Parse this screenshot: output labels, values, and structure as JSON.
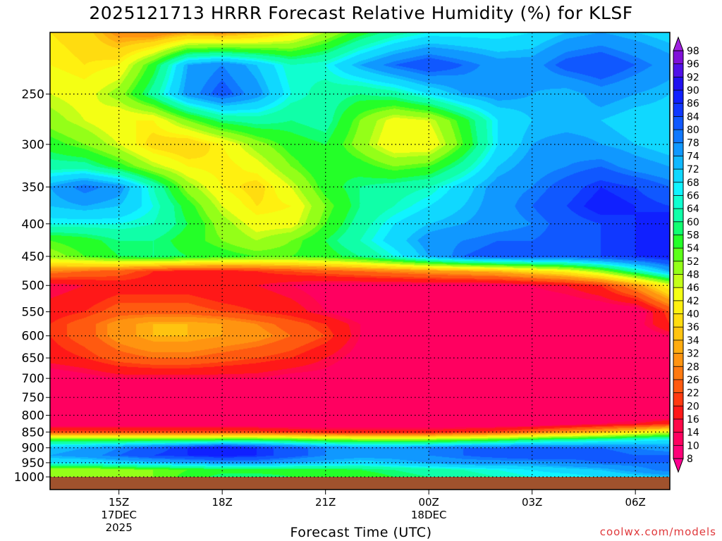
{
  "chart_data": {
    "type": "heatmap",
    "title": "2025121713 HRRR Forecast Relative Humidity (%) for KLSF",
    "xlabel": "Forecast Time (UTC)",
    "ylabel": "",
    "y_scale": "log",
    "y_reversed": true,
    "ylim": [
      1000,
      200
    ],
    "y_ticks": [
      250,
      300,
      350,
      400,
      450,
      500,
      550,
      600,
      650,
      700,
      750,
      800,
      850,
      900,
      950,
      1000
    ],
    "xlim_hours": [
      13,
      31
    ],
    "x_ticks": [
      {
        "hour": 15,
        "label": "15Z",
        "sub1": "17DEC",
        "sub2": "2025"
      },
      {
        "hour": 18,
        "label": "18Z",
        "sub1": "",
        "sub2": ""
      },
      {
        "hour": 21,
        "label": "21Z",
        "sub1": "",
        "sub2": ""
      },
      {
        "hour": 24,
        "label": "00Z",
        "sub1": "18DEC",
        "sub2": ""
      },
      {
        "hour": 27,
        "label": "03Z",
        "sub1": "",
        "sub2": ""
      },
      {
        "hour": 30,
        "label": "06Z",
        "sub1": "",
        "sub2": ""
      }
    ],
    "grid": true,
    "colorbar": {
      "levels": [
        8,
        10,
        14,
        16,
        20,
        22,
        26,
        28,
        32,
        34,
        36,
        40,
        42,
        46,
        48,
        52,
        54,
        58,
        60,
        64,
        66,
        68,
        72,
        74,
        78,
        80,
        84,
        86,
        90,
        92,
        96,
        98
      ],
      "colors": [
        "#ff0090",
        "#ff0078",
        "#ff0060",
        "#ff0848",
        "#ff1818",
        "#ff3a10",
        "#ff5a10",
        "#ff7a10",
        "#ff9410",
        "#ffac10",
        "#ffc410",
        "#ffdc10",
        "#fff010",
        "#f4ff14",
        "#c4ff18",
        "#94ff18",
        "#5cff18",
        "#24ff28",
        "#10ff70",
        "#10ffa8",
        "#10ffd0",
        "#10f4ff",
        "#10d8ff",
        "#10b8ff",
        "#1098ff",
        "#1078ff",
        "#1058ff",
        "#1038ff",
        "#1020ff",
        "#2010f0",
        "#5010e8",
        "#8010d8",
        "#a020e0"
      ]
    },
    "x": [
      13,
      14,
      15,
      16,
      17,
      18,
      19,
      20,
      21,
      22,
      23,
      24,
      25,
      26,
      27,
      28,
      29,
      30,
      31
    ],
    "y": [
      1000,
      975,
      950,
      925,
      900,
      875,
      850,
      825,
      800,
      750,
      700,
      650,
      600,
      575,
      550,
      500,
      475,
      450,
      425,
      400,
      375,
      350,
      325,
      300,
      275,
      250,
      225,
      200
    ],
    "z": [
      [
        50,
        50,
        50,
        52,
        55,
        60,
        60,
        58,
        55,
        55,
        58,
        60,
        62,
        64,
        66,
        66,
        68,
        70,
        72
      ],
      [
        48,
        48,
        50,
        52,
        54,
        56,
        56,
        56,
        56,
        58,
        60,
        62,
        64,
        66,
        68,
        70,
        72,
        76,
        80
      ],
      [
        68,
        68,
        70,
        72,
        74,
        76,
        76,
        74,
        72,
        70,
        72,
        74,
        76,
        76,
        76,
        78,
        80,
        80,
        80
      ],
      [
        74,
        76,
        80,
        84,
        86,
        88,
        86,
        82,
        78,
        76,
        76,
        78,
        80,
        82,
        84,
        82,
        82,
        80,
        80
      ],
      [
        72,
        74,
        78,
        82,
        86,
        90,
        86,
        82,
        78,
        76,
        76,
        78,
        80,
        80,
        82,
        80,
        80,
        78,
        76
      ],
      [
        56,
        56,
        56,
        56,
        56,
        58,
        58,
        56,
        54,
        52,
        52,
        52,
        54,
        56,
        60,
        62,
        64,
        66,
        68
      ],
      [
        22,
        22,
        22,
        22,
        22,
        22,
        22,
        20,
        18,
        18,
        18,
        18,
        20,
        22,
        26,
        30,
        34,
        40,
        46
      ],
      [
        10,
        10,
        10,
        10,
        10,
        10,
        10,
        10,
        10,
        10,
        10,
        10,
        10,
        10,
        10,
        12,
        14,
        16,
        20
      ],
      [
        10,
        10,
        10,
        10,
        10,
        10,
        10,
        10,
        10,
        10,
        10,
        10,
        10,
        10,
        10,
        10,
        10,
        10,
        10
      ],
      [
        10,
        10,
        10,
        10,
        10,
        10,
        10,
        10,
        10,
        10,
        10,
        10,
        10,
        10,
        10,
        10,
        10,
        10,
        10
      ],
      [
        10,
        12,
        14,
        14,
        14,
        14,
        14,
        12,
        12,
        10,
        10,
        10,
        10,
        10,
        10,
        10,
        10,
        10,
        10
      ],
      [
        18,
        20,
        24,
        26,
        26,
        24,
        22,
        20,
        16,
        12,
        10,
        10,
        10,
        10,
        10,
        10,
        10,
        10,
        10
      ],
      [
        20,
        24,
        30,
        34,
        34,
        32,
        30,
        26,
        22,
        14,
        10,
        10,
        10,
        10,
        10,
        10,
        10,
        10,
        14
      ],
      [
        20,
        24,
        30,
        34,
        34,
        32,
        28,
        24,
        20,
        14,
        10,
        10,
        10,
        10,
        10,
        10,
        10,
        12,
        20
      ],
      [
        18,
        20,
        24,
        24,
        24,
        22,
        20,
        18,
        14,
        10,
        10,
        10,
        10,
        10,
        10,
        10,
        10,
        10,
        22
      ],
      [
        14,
        16,
        18,
        18,
        18,
        16,
        16,
        14,
        12,
        12,
        12,
        12,
        12,
        12,
        14,
        16,
        20,
        30,
        44
      ],
      [
        28,
        26,
        24,
        20,
        18,
        18,
        20,
        22,
        24,
        26,
        28,
        30,
        32,
        34,
        38,
        42,
        50,
        62,
        74
      ],
      [
        50,
        54,
        58,
        60,
        58,
        56,
        54,
        54,
        56,
        60,
        66,
        74,
        80,
        82,
        82,
        82,
        84,
        86,
        88
      ],
      [
        54,
        56,
        60,
        60,
        56,
        52,
        48,
        52,
        58,
        64,
        70,
        76,
        78,
        80,
        80,
        82,
        84,
        86,
        90
      ],
      [
        66,
        66,
        66,
        64,
        58,
        50,
        44,
        44,
        54,
        62,
        68,
        72,
        74,
        76,
        78,
        82,
        84,
        86,
        90
      ],
      [
        72,
        74,
        72,
        66,
        56,
        46,
        40,
        42,
        52,
        60,
        64,
        68,
        72,
        76,
        80,
        84,
        88,
        86,
        84
      ],
      [
        74,
        80,
        76,
        64,
        50,
        42,
        38,
        46,
        56,
        60,
        62,
        64,
        70,
        76,
        78,
        82,
        86,
        84,
        80
      ],
      [
        62,
        62,
        56,
        48,
        42,
        40,
        44,
        52,
        58,
        56,
        52,
        54,
        62,
        72,
        76,
        78,
        80,
        76,
        74
      ],
      [
        56,
        52,
        46,
        38,
        36,
        42,
        50,
        56,
        58,
        50,
        42,
        42,
        54,
        68,
        74,
        76,
        74,
        72,
        70
      ],
      [
        50,
        46,
        42,
        42,
        52,
        60,
        62,
        60,
        62,
        52,
        44,
        46,
        56,
        68,
        72,
        72,
        72,
        70,
        70
      ],
      [
        46,
        44,
        50,
        62,
        76,
        82,
        76,
        66,
        62,
        60,
        62,
        68,
        74,
        76,
        74,
        72,
        76,
        74,
        72
      ],
      [
        42,
        40,
        42,
        56,
        74,
        78,
        72,
        64,
        66,
        74,
        80,
        84,
        80,
        76,
        76,
        82,
        84,
        80,
        76
      ],
      [
        40,
        38,
        30,
        28,
        32,
        30,
        34,
        40,
        48,
        56,
        62,
        66,
        66,
        66,
        68,
        72,
        74,
        72,
        70
      ]
    ],
    "ground_color": "#a0522d"
  },
  "credit": "coolwx.com/models"
}
